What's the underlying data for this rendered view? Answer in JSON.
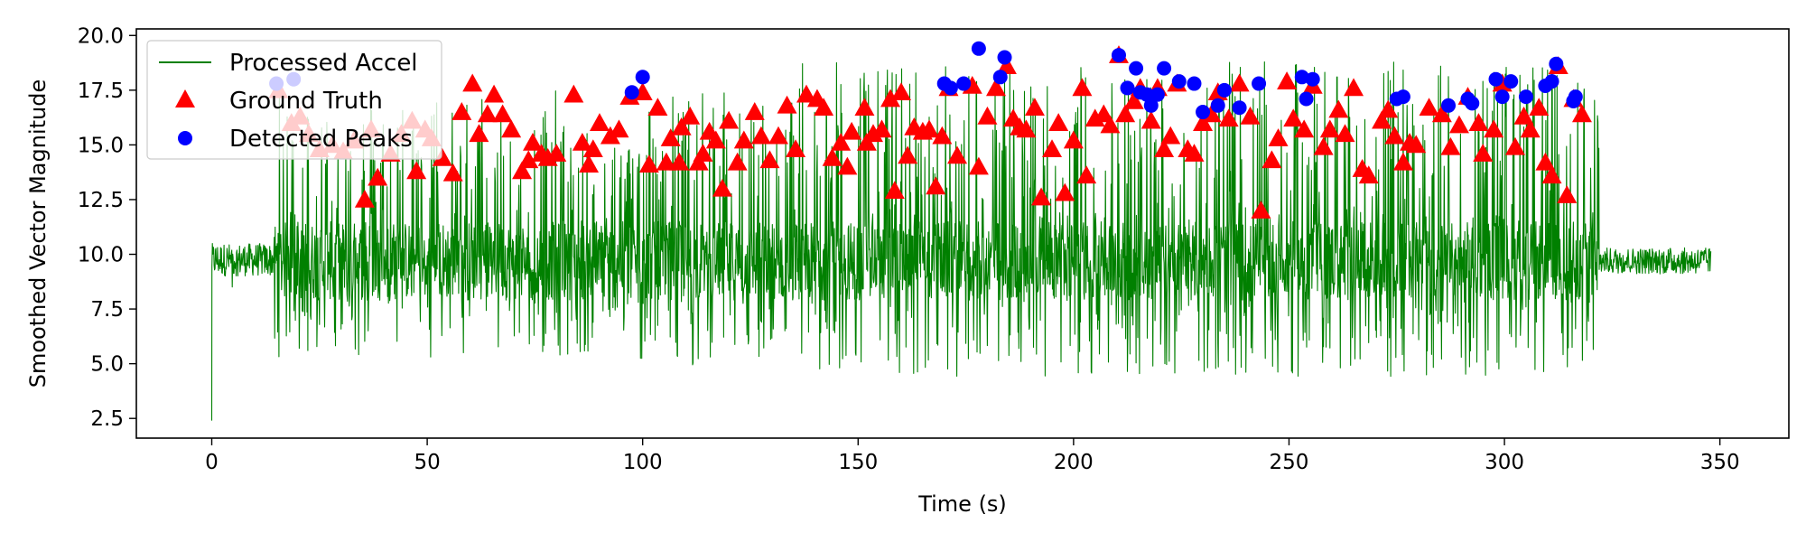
{
  "chart_data": {
    "type": "line",
    "xlabel": "Time (s)",
    "ylabel": "Smoothed Vector Magnitude",
    "xlim": [
      -17.5,
      366
    ],
    "ylim": [
      1.6,
      20.3
    ],
    "xticks": [
      0,
      50,
      100,
      150,
      200,
      250,
      300,
      350
    ],
    "xtick_labels": [
      "0",
      "50",
      "100",
      "150",
      "200",
      "250",
      "300",
      "350"
    ],
    "yticks": [
      2.5,
      5.0,
      7.5,
      10.0,
      12.5,
      15.0,
      17.5,
      20.0
    ],
    "ytick_labels": [
      "2.5",
      "5.0",
      "7.5",
      "10.0",
      "12.5",
      "15.0",
      "17.5",
      "20.0"
    ],
    "grid": false,
    "legend": {
      "position": "top-left",
      "entries": [
        {
          "label": "Processed Accel",
          "marker": "line",
          "color": "#008000"
        },
        {
          "label": "Ground Truth",
          "marker": "triangle",
          "color": "#ff0000"
        },
        {
          "label": "Detected Peaks",
          "marker": "circle",
          "color": "#0000ff"
        }
      ]
    },
    "series": [
      {
        "name": "Processed Accel",
        "color": "#008000",
        "style": "noisy-signal",
        "start_value": 2.4,
        "segments": [
          {
            "x": [
              0,
              14.5
            ],
            "baseline": 9.8,
            "low": 9.0,
            "high": 10.5,
            "spike_high": 12.2,
            "spike_low": 8.2
          },
          {
            "x": [
              14.5,
              82
            ],
            "baseline": 9.7,
            "low": 5.3,
            "high": 17.5
          },
          {
            "x": [
              82,
              98
            ],
            "baseline": 9.7,
            "low": 5.4,
            "high": 15.6
          },
          {
            "x": [
              98,
              135
            ],
            "baseline": 9.7,
            "low": 4.8,
            "high": 17.5
          },
          {
            "x": [
              135,
              322
            ],
            "baseline": 9.7,
            "low": 4.4,
            "high": 18.8
          },
          {
            "x": [
              322,
              348
            ],
            "baseline": 9.7,
            "low": 9.1,
            "high": 10.3,
            "spike_high": 12.6,
            "spike_low": 7.7
          }
        ]
      },
      {
        "name": "Ground Truth",
        "color": "#ff0000",
        "marker": "triangle",
        "points": [
          [
            15.5,
            17.5
          ],
          [
            18.5,
            16.0
          ],
          [
            20.5,
            16.3
          ],
          [
            22.5,
            15.5
          ],
          [
            25.0,
            14.8
          ],
          [
            28.0,
            15.0
          ],
          [
            30.5,
            14.7
          ],
          [
            33.0,
            15.2
          ],
          [
            35.5,
            12.5
          ],
          [
            37.0,
            15.7
          ],
          [
            38.5,
            13.5
          ],
          [
            41.5,
            14.6
          ],
          [
            44.0,
            15.5
          ],
          [
            46.5,
            16.1
          ],
          [
            47.5,
            13.8
          ],
          [
            49.5,
            15.7
          ],
          [
            51.0,
            15.3
          ],
          [
            53.5,
            14.4
          ],
          [
            56.0,
            13.7
          ],
          [
            58.0,
            16.5
          ],
          [
            60.5,
            17.8
          ],
          [
            62.0,
            15.5
          ],
          [
            64.0,
            16.4
          ],
          [
            65.5,
            17.3
          ],
          [
            67.5,
            16.4
          ],
          [
            69.5,
            15.7
          ],
          [
            72.0,
            13.8
          ],
          [
            73.5,
            14.3
          ],
          [
            74.5,
            15.1
          ],
          [
            76.5,
            14.6
          ],
          [
            78.0,
            14.4
          ],
          [
            80.0,
            14.6
          ],
          [
            84.0,
            17.3
          ],
          [
            86.0,
            15.1
          ],
          [
            87.5,
            14.1
          ],
          [
            88.5,
            14.8
          ],
          [
            90.0,
            16.0
          ],
          [
            92.5,
            15.4
          ],
          [
            94.5,
            15.7
          ],
          [
            97.0,
            17.2
          ],
          [
            100.0,
            17.4
          ],
          [
            101.5,
            14.1
          ],
          [
            103.5,
            16.7
          ],
          [
            105.5,
            14.2
          ],
          [
            106.5,
            15.3
          ],
          [
            108.5,
            14.2
          ],
          [
            109.0,
            15.8
          ],
          [
            111.0,
            16.3
          ],
          [
            113.0,
            14.2
          ],
          [
            114.0,
            14.6
          ],
          [
            115.5,
            15.6
          ],
          [
            117.0,
            15.2
          ],
          [
            118.5,
            13.0
          ],
          [
            120.0,
            16.1
          ],
          [
            122.0,
            14.2
          ],
          [
            123.5,
            15.2
          ],
          [
            126.0,
            16.5
          ],
          [
            127.5,
            15.4
          ],
          [
            129.5,
            14.3
          ],
          [
            131.5,
            15.4
          ],
          [
            133.5,
            16.8
          ],
          [
            135.5,
            14.8
          ],
          [
            138.0,
            17.3
          ],
          [
            140.5,
            17.1
          ],
          [
            142.0,
            16.7
          ],
          [
            144.0,
            14.4
          ],
          [
            146.0,
            15.1
          ],
          [
            147.5,
            14.0
          ],
          [
            148.5,
            15.6
          ],
          [
            151.5,
            16.7
          ],
          [
            152.0,
            15.1
          ],
          [
            153.5,
            15.5
          ],
          [
            155.5,
            15.7
          ],
          [
            157.5,
            17.1
          ],
          [
            158.5,
            12.9
          ],
          [
            160.0,
            17.4
          ],
          [
            161.5,
            14.5
          ],
          [
            163.0,
            15.8
          ],
          [
            165.0,
            15.6
          ],
          [
            166.5,
            15.7
          ],
          [
            168.0,
            13.1
          ],
          [
            169.5,
            15.4
          ],
          [
            171.0,
            17.6
          ],
          [
            173.0,
            14.5
          ],
          [
            176.5,
            17.7
          ],
          [
            178.0,
            14.0
          ],
          [
            180.0,
            16.3
          ],
          [
            182.0,
            17.6
          ],
          [
            184.5,
            18.6
          ],
          [
            186.0,
            16.2
          ],
          [
            187.5,
            15.8
          ],
          [
            189.0,
            15.7
          ],
          [
            191.0,
            16.7
          ],
          [
            192.5,
            12.6
          ],
          [
            195.0,
            14.8
          ],
          [
            196.5,
            16.0
          ],
          [
            198.0,
            12.8
          ],
          [
            200.0,
            15.2
          ],
          [
            202.0,
            17.6
          ],
          [
            203.0,
            13.6
          ],
          [
            205.0,
            16.2
          ],
          [
            207.0,
            16.4
          ],
          [
            208.5,
            15.9
          ],
          [
            210.5,
            19.1
          ],
          [
            212.0,
            16.4
          ],
          [
            214.0,
            17.0
          ],
          [
            215.5,
            17.6
          ],
          [
            218.0,
            16.1
          ],
          [
            219.5,
            17.6
          ],
          [
            221.0,
            14.8
          ],
          [
            222.5,
            15.4
          ],
          [
            224.0,
            17.8
          ],
          [
            226.5,
            14.8
          ],
          [
            228.0,
            14.6
          ],
          [
            230.0,
            16.0
          ],
          [
            232.0,
            16.4
          ],
          [
            233.5,
            17.4
          ],
          [
            236.0,
            16.2
          ],
          [
            238.5,
            17.8
          ],
          [
            241.0,
            16.3
          ],
          [
            243.5,
            12.0
          ],
          [
            246.0,
            14.3
          ],
          [
            247.5,
            15.3
          ],
          [
            249.5,
            17.9
          ],
          [
            251.0,
            16.2
          ],
          [
            253.5,
            15.7
          ],
          [
            255.5,
            17.7
          ],
          [
            258.0,
            14.9
          ],
          [
            259.5,
            15.7
          ],
          [
            261.5,
            16.6
          ],
          [
            263.0,
            15.5
          ],
          [
            265.0,
            17.6
          ],
          [
            267.0,
            13.9
          ],
          [
            268.5,
            13.6
          ],
          [
            271.5,
            16.1
          ],
          [
            273.0,
            16.6
          ],
          [
            274.5,
            15.4
          ],
          [
            276.5,
            14.2
          ],
          [
            278.0,
            15.1
          ],
          [
            279.5,
            15.0
          ],
          [
            282.5,
            16.7
          ],
          [
            285.5,
            16.4
          ],
          [
            287.5,
            14.9
          ],
          [
            289.5,
            15.9
          ],
          [
            291.5,
            17.2
          ],
          [
            294.0,
            16.0
          ],
          [
            295.0,
            14.6
          ],
          [
            297.5,
            15.7
          ],
          [
            299.5,
            17.8
          ],
          [
            302.5,
            14.9
          ],
          [
            304.5,
            16.3
          ],
          [
            306.0,
            15.7
          ],
          [
            308.0,
            16.7
          ],
          [
            309.5,
            14.2
          ],
          [
            311.0,
            13.6
          ],
          [
            312.5,
            18.6
          ],
          [
            314.5,
            12.7
          ],
          [
            316.0,
            17.1
          ],
          [
            318.0,
            16.4
          ]
        ]
      },
      {
        "name": "Detected Peaks",
        "color": "#0000ff",
        "marker": "circle",
        "points": [
          [
            15.0,
            17.8
          ],
          [
            19.0,
            18.0
          ],
          [
            97.5,
            17.4
          ],
          [
            100.0,
            18.1
          ],
          [
            170.0,
            17.8
          ],
          [
            171.5,
            17.6
          ],
          [
            174.5,
            17.8
          ],
          [
            178.0,
            19.4
          ],
          [
            183.0,
            18.1
          ],
          [
            184.0,
            19.0
          ],
          [
            210.5,
            19.1
          ],
          [
            212.5,
            17.6
          ],
          [
            214.5,
            18.5
          ],
          [
            215.5,
            17.4
          ],
          [
            217.0,
            17.3
          ],
          [
            218.0,
            16.8
          ],
          [
            219.5,
            17.3
          ],
          [
            221.0,
            18.5
          ],
          [
            224.5,
            17.9
          ],
          [
            228.0,
            17.8
          ],
          [
            230.0,
            16.5
          ],
          [
            233.5,
            16.8
          ],
          [
            235.0,
            17.5
          ],
          [
            238.5,
            16.7
          ],
          [
            243.0,
            17.8
          ],
          [
            253.0,
            18.1
          ],
          [
            254.0,
            17.1
          ],
          [
            255.5,
            18.0
          ],
          [
            275.0,
            17.1
          ],
          [
            276.5,
            17.2
          ],
          [
            287.0,
            16.8
          ],
          [
            291.5,
            17.1
          ],
          [
            292.5,
            16.9
          ],
          [
            298.0,
            18.0
          ],
          [
            299.5,
            17.2
          ],
          [
            301.5,
            17.9
          ],
          [
            305.0,
            17.2
          ],
          [
            309.5,
            17.7
          ],
          [
            311.0,
            17.9
          ],
          [
            312.0,
            18.7
          ],
          [
            316.0,
            17.0
          ],
          [
            316.5,
            17.2
          ]
        ]
      }
    ]
  }
}
